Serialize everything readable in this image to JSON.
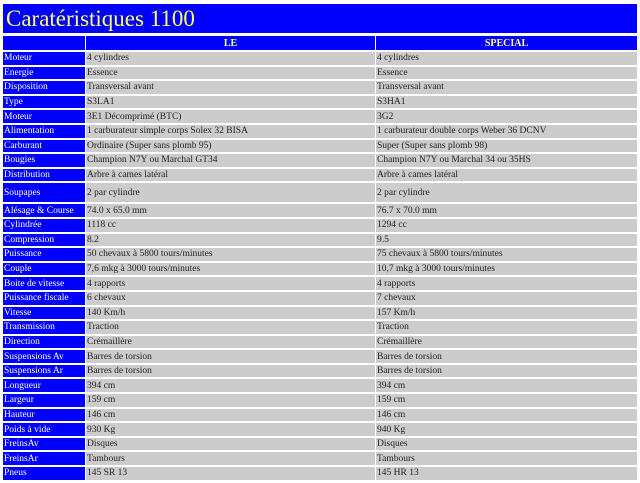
{
  "title": "Caratéristiques 1100",
  "columns": [
    "",
    "LE",
    "SPECIAL"
  ],
  "colors": {
    "header_bg": "#0000ff",
    "title_text": "#ffff66",
    "cell_bg": "#cccccc"
  },
  "rows": [
    {
      "label": "Moteur",
      "le": "4 cylindres",
      "special": "4 cylindres"
    },
    {
      "label": "Energie",
      "le": "Essence",
      "special": "Essence"
    },
    {
      "label": "Disposition",
      "le": "Transversal avant",
      "special": "Transversal avant"
    },
    {
      "label": "Type",
      "le": "S3LA1",
      "special": "S3HA1"
    },
    {
      "label": "Moteur",
      "le": "3E1 Décomprimé (BTC)",
      "special": "3G2"
    },
    {
      "label": "Alimentation",
      "le": "1 carburateur simple corps Solex 32 BISA",
      "special": "1 carburateur double corps Weber 36 DCNV"
    },
    {
      "label": "Carburant",
      "le": "Ordinaire (Super sans plomb 95)",
      "special": "Super (Super sans plomb 98)"
    },
    {
      "label": "Bougies",
      "le": "Champion N7Y ou Marchal GT34",
      "special": "Champion N7Y ou Marchal 34 ou 35HS"
    },
    {
      "label": "Distribution",
      "le": "Arbre à cames latéral",
      "special": "Arbre à cames latéral"
    },
    {
      "label": "Soupapes",
      "le": "2 par cylindre",
      "special": "2 par cylindre"
    },
    {
      "label": "Alésage & Course",
      "le": "74.0 x 65.0 mm",
      "special": "76.7 x 70.0 mm"
    },
    {
      "label": "Cylindrée",
      "le": "1118 cc",
      "special": "1294 cc"
    },
    {
      "label": "Compression",
      "le": "8.2",
      "special": "9.5"
    },
    {
      "label": "Puissance",
      "le": "50 chevaux à 5800 tours/minutes",
      "special": "75 chevaux à 5800 tours/minutes"
    },
    {
      "label": "Couple",
      "le": "7,6 mkg à 3000 tours/minutes",
      "special": "10,7 mkg à 3000 tours/minutes"
    },
    {
      "label": "Boite de vitesse",
      "le": "4 rapports",
      "special": "4 rapports"
    },
    {
      "label": "Puissance fiscale",
      "le": "6 chevaux",
      "special": "7 chevaux"
    },
    {
      "label": "Vitesse",
      "le": "140 Km/h",
      "special": "157 Km/h"
    },
    {
      "label": "Transmission",
      "le": "Traction",
      "special": "Traction"
    },
    {
      "label": "Direction",
      "le": "Crémaillère",
      "special": "Crémaillère"
    },
    {
      "label": "Suspensions Av",
      "le": "Barres de torsion",
      "special": "Barres de torsion"
    },
    {
      "label": "Suspensions Ar",
      "le": "Barres de torsion",
      "special": "Barres de torsion"
    },
    {
      "label": "Longueur",
      "le": "394 cm",
      "special": "394 cm"
    },
    {
      "label": "Largeur",
      "le": "159 cm",
      "special": "159 cm"
    },
    {
      "label": "Hauteur",
      "le": "146 cm",
      "special": "146 cm"
    },
    {
      "label": "Poids à vide",
      "le": "930 Kg",
      "special": "940 Kg"
    },
    {
      "label": "FreinsAv",
      "le": "Disques",
      "special": "Disques"
    },
    {
      "label": "FreinsAr",
      "le": "Tambours",
      "special": "Tambours"
    },
    {
      "label": "Pneus",
      "le": "145 SR 13",
      "special": "145 HR 13"
    }
  ]
}
